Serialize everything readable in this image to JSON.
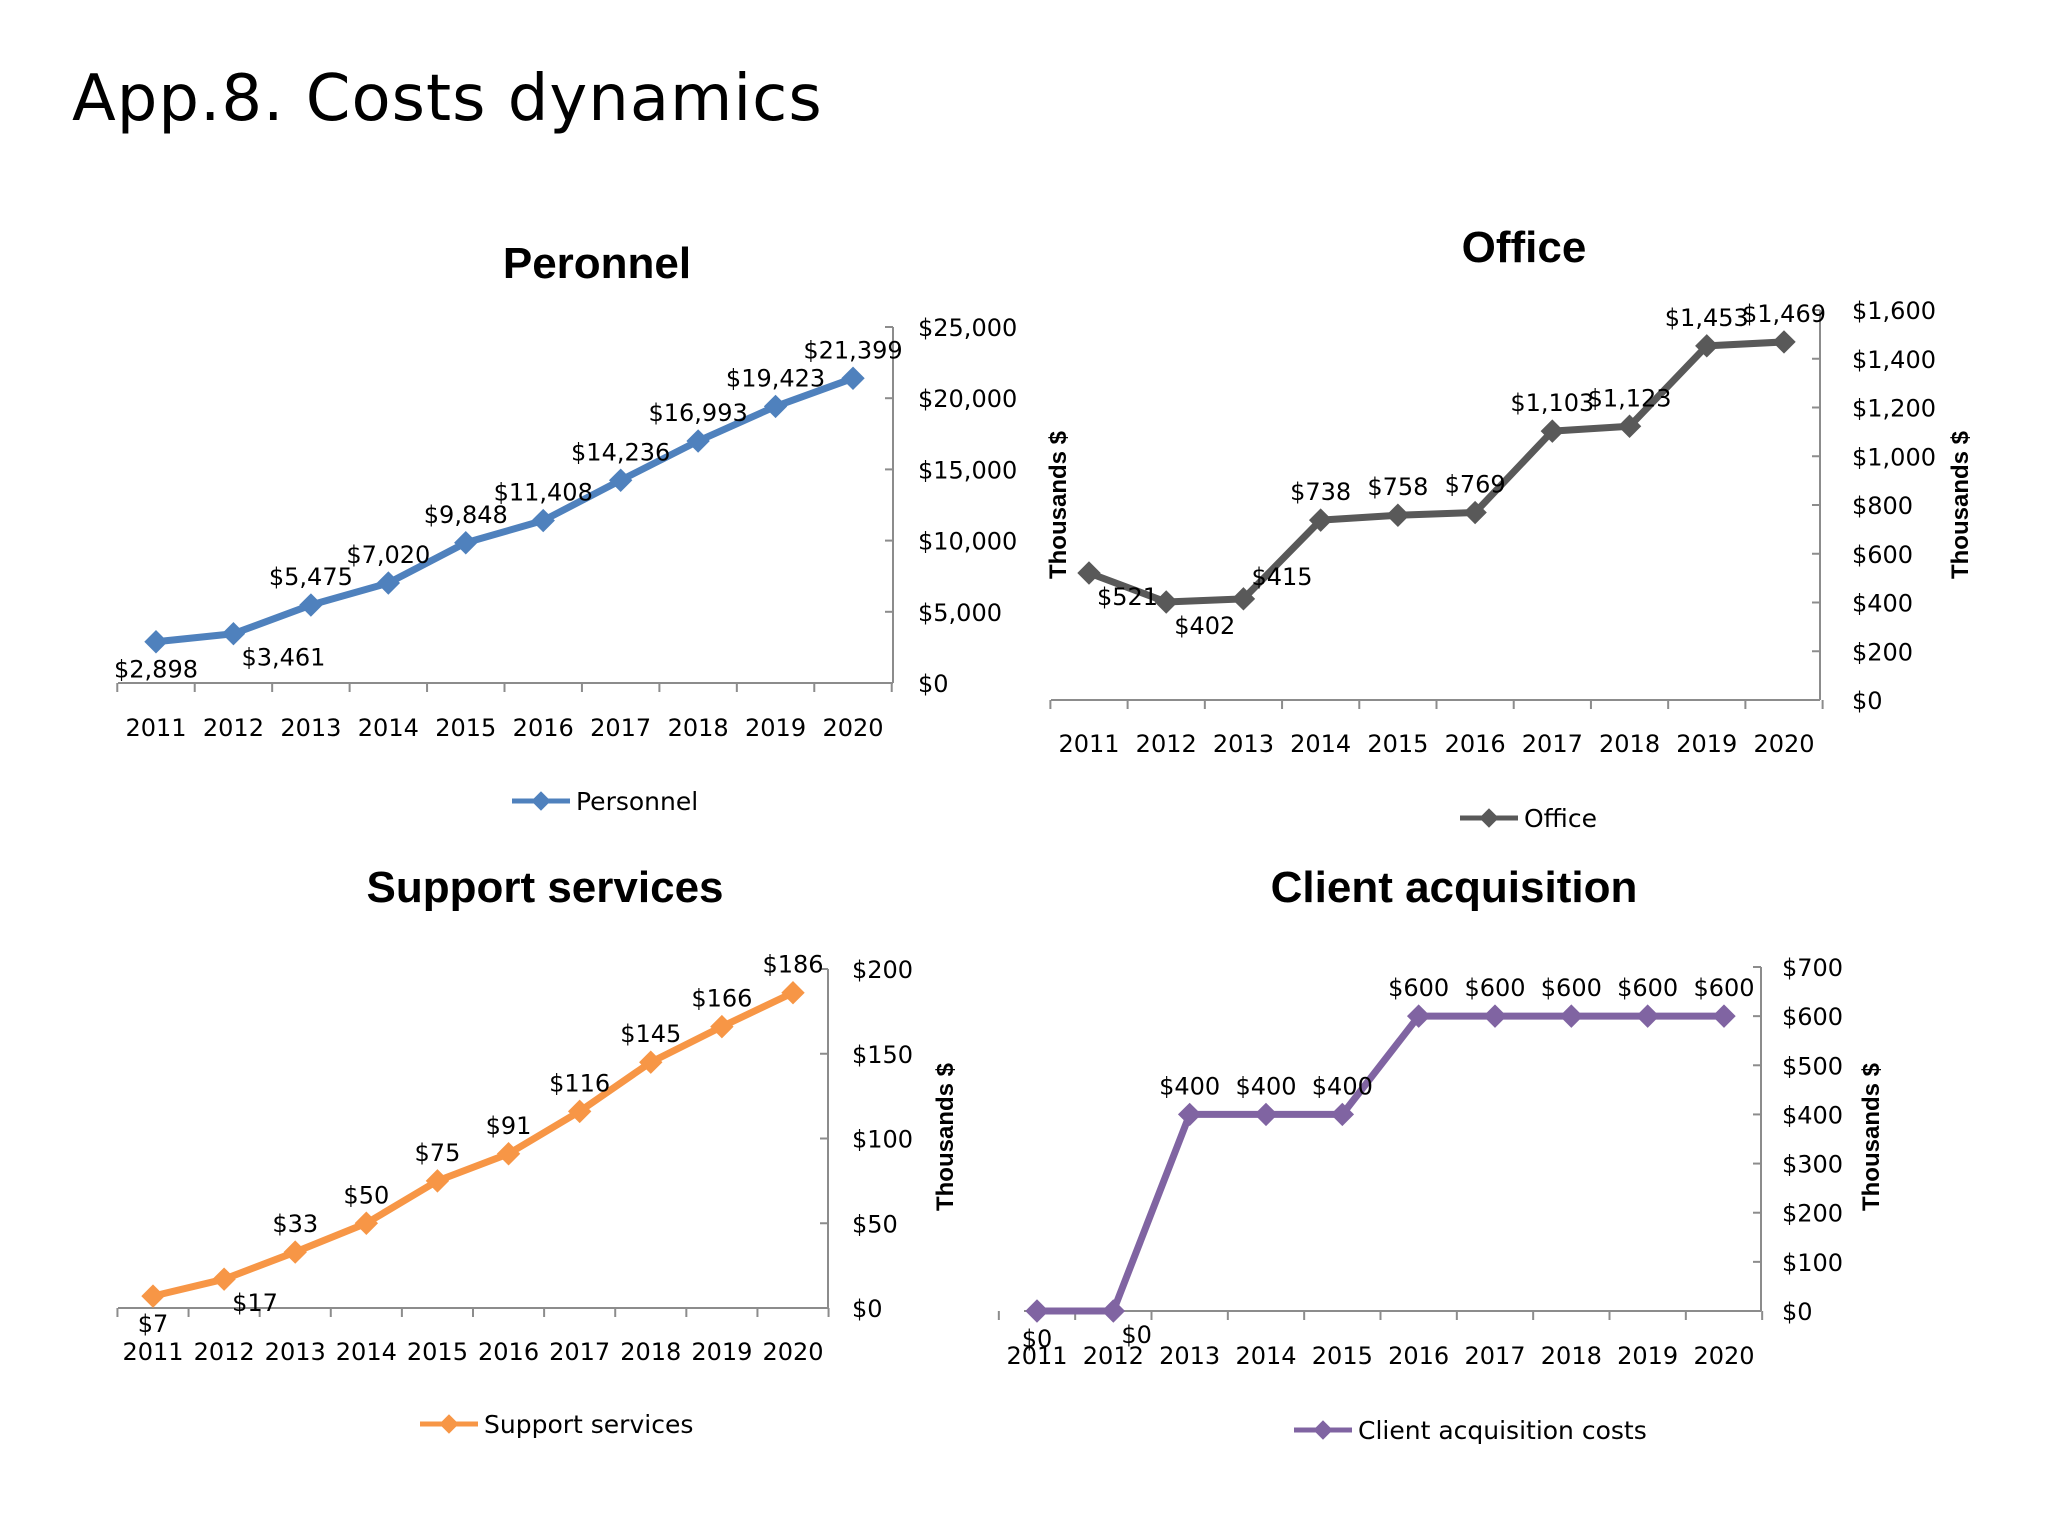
{
  "page": {
    "title": "App.8. Costs dynamics"
  },
  "chart_data": [
    {
      "id": "personnel",
      "type": "line",
      "title": "Peronnel",
      "color": "#4F81BD",
      "x": [
        "2011",
        "2012",
        "2013",
        "2014",
        "2015",
        "2016",
        "2017",
        "2018",
        "2019",
        "2020"
      ],
      "series": [
        {
          "name": "Personnel",
          "values": [
            2898,
            3461,
            5475,
            7020,
            9848,
            11408,
            14236,
            16993,
            19423,
            21399
          ]
        }
      ],
      "value_labels": [
        "$2,898",
        "$3,461",
        "$5,475",
        "$7,020",
        "$9,848",
        "$11,408",
        "$14,236",
        "$16,993",
        "$19,423",
        "$21,399"
      ],
      "yticks": [
        0,
        5000,
        10000,
        15000,
        20000,
        25000
      ],
      "ytick_labels": [
        "$0",
        "$5,000",
        "$10,000",
        "$15,000",
        "$20,000",
        "$25,000"
      ],
      "ylim": [
        0,
        25000
      ],
      "ylabel": "",
      "ylabel_side": "none",
      "legend_position": "bottom",
      "label_positions": [
        "below",
        "below-right",
        "above",
        "above",
        "above",
        "above",
        "above",
        "above",
        "above",
        "above"
      ]
    },
    {
      "id": "office",
      "type": "line",
      "title": "Office",
      "color": "#595959",
      "x": [
        "2011",
        "2012",
        "2013",
        "2014",
        "2015",
        "2016",
        "2017",
        "2018",
        "2019",
        "2020"
      ],
      "series": [
        {
          "name": "Office",
          "values": [
            521,
            402,
            415,
            738,
            758,
            769,
            1103,
            1123,
            1453,
            1469
          ]
        }
      ],
      "value_labels": [
        "$521",
        "$402",
        "$415",
        "$738",
        "$758",
        "$769",
        "$1,103",
        "$1,123",
        "$1,453",
        "$1,469"
      ],
      "yticks": [
        0,
        200,
        400,
        600,
        800,
        1000,
        1200,
        1400,
        1600
      ],
      "ytick_labels": [
        "$0",
        "$200",
        "$400",
        "$600",
        "$800",
        "$1,000",
        "$1,200",
        "$1,400",
        "$1,600"
      ],
      "ylim": [
        0,
        1600
      ],
      "ylabel": "Thousands $",
      "ylabel_side": "both",
      "legend_position": "bottom",
      "label_positions": [
        "below-right",
        "below-right",
        "above-right",
        "above",
        "above",
        "above",
        "above",
        "above",
        "above",
        "above"
      ]
    },
    {
      "id": "support",
      "type": "line",
      "title": "Support services",
      "color": "#F79646",
      "x": [
        "2011",
        "2012",
        "2013",
        "2014",
        "2015",
        "2016",
        "2017",
        "2018",
        "2019",
        "2020"
      ],
      "series": [
        {
          "name": "Support services",
          "values": [
            7,
            17,
            33,
            50,
            75,
            91,
            116,
            145,
            166,
            186
          ]
        }
      ],
      "value_labels": [
        "$7",
        "$17",
        "$33",
        "$50",
        "$75",
        "$91",
        "$116",
        "$145",
        "$166",
        "$186"
      ],
      "yticks": [
        0,
        50,
        100,
        150,
        200
      ],
      "ytick_labels": [
        "$0",
        "$50",
        "$100",
        "$150",
        "$200"
      ],
      "ylim": [
        0,
        200
      ],
      "ylabel": "Thousands $",
      "ylabel_side": "right",
      "legend_position": "bottom",
      "label_positions": [
        "below",
        "below-right",
        "above",
        "above",
        "above",
        "above",
        "above",
        "above",
        "above",
        "above"
      ]
    },
    {
      "id": "client",
      "type": "line",
      "title": "Client acquisition",
      "color": "#8064A2",
      "x": [
        "2011",
        "2012",
        "2013",
        "2014",
        "2015",
        "2016",
        "2017",
        "2018",
        "2019",
        "2020"
      ],
      "series": [
        {
          "name": "Client acquisition costs",
          "values": [
            0,
            0,
            400,
            400,
            400,
            600,
            600,
            600,
            600,
            600
          ]
        }
      ],
      "value_labels": [
        "$0",
        "$0",
        "$400",
        "$400",
        "$400",
        "$600",
        "$600",
        "$600",
        "$600",
        "$600"
      ],
      "yticks": [
        0,
        100,
        200,
        300,
        400,
        500,
        600,
        700
      ],
      "ytick_labels": [
        "$0",
        "$100",
        "$200",
        "$300",
        "$400",
        "$500",
        "$600",
        "$700"
      ],
      "ylim": [
        0,
        700
      ],
      "ylabel": "Thousands $",
      "ylabel_side": "right",
      "legend_position": "bottom",
      "label_positions": [
        "below",
        "below-right",
        "above",
        "above",
        "above",
        "above",
        "above",
        "above",
        "above",
        "above"
      ]
    }
  ]
}
